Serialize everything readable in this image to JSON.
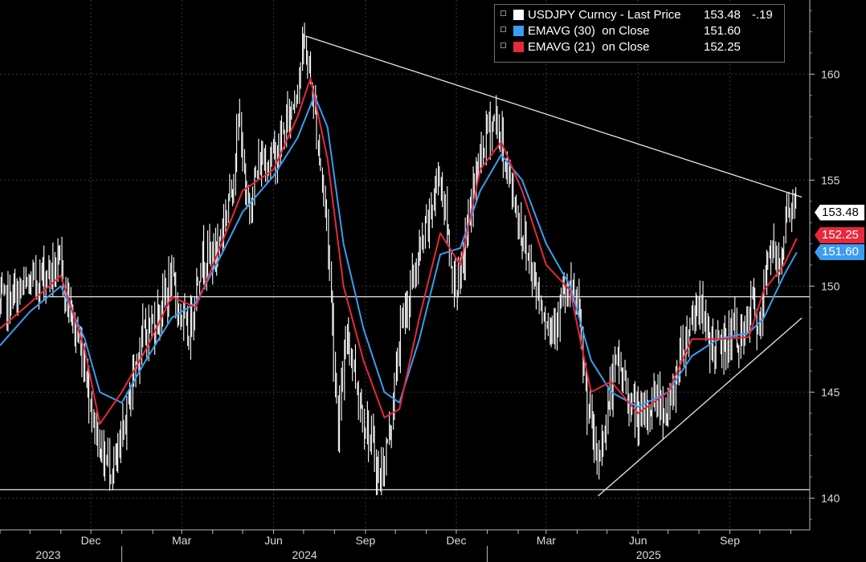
{
  "legend": {
    "items": [
      {
        "label": "USDJPY Curncy - Last Price",
        "value": "153.48",
        "change": "-.19",
        "color": "#ffffff"
      },
      {
        "label": "EMAVG (30)  on Close",
        "value": "151.60",
        "change": "",
        "color": "#3c9cf0"
      },
      {
        "label": "EMAVG (21)  on Close",
        "value": "152.25",
        "change": "",
        "color": "#e8283c"
      }
    ]
  },
  "tags": {
    "last": "153.48",
    "ema21": "152.25",
    "ema30": "151.60"
  },
  "chart_data": {
    "type": "line",
    "title": "",
    "xlabel": "",
    "ylabel": "",
    "y_ticks": [
      "140",
      "145",
      "150",
      "155",
      "160"
    ],
    "ylim": [
      138.5,
      163.5
    ],
    "x_tick_labels": [
      "Dec",
      "Mar",
      "Jun",
      "Sep",
      "Dec",
      "Mar",
      "Jun",
      "Sep"
    ],
    "year_labels": [
      "2023",
      "2024",
      "2025"
    ],
    "x_range": [
      "2023-09",
      "2025-11"
    ],
    "grid": true,
    "legend_position": "top-right",
    "series": [
      {
        "name": "USDJPY Curncy - Last Price",
        "color": "#ffffff",
        "style": "high-low bars",
        "points": [
          [
            "2023-09-01",
            149.0
          ],
          [
            "2023-09-15",
            149.5
          ],
          [
            "2023-10-01",
            150.0
          ],
          [
            "2023-10-15",
            150.6
          ],
          [
            "2023-11-01",
            150.9
          ],
          [
            "2023-11-15",
            148.0
          ],
          [
            "2023-11-25",
            146.5
          ],
          [
            "2023-12-05",
            143.5
          ],
          [
            "2023-12-15",
            141.8
          ],
          [
            "2023-12-28",
            141.5
          ],
          [
            "2024-01-10",
            145.0
          ],
          [
            "2024-01-20",
            147.5
          ],
          [
            "2024-02-05",
            148.5
          ],
          [
            "2024-02-20",
            150.2
          ],
          [
            "2024-03-08",
            147.5
          ],
          [
            "2024-03-20",
            151.3
          ],
          [
            "2024-04-05",
            151.6
          ],
          [
            "2024-04-20",
            154.6
          ],
          [
            "2024-04-29",
            158.0
          ],
          [
            "2024-05-05",
            153.5
          ],
          [
            "2024-05-20",
            156.0
          ],
          [
            "2024-06-05",
            156.2
          ],
          [
            "2024-06-20",
            158.5
          ],
          [
            "2024-07-03",
            161.5
          ],
          [
            "2024-07-12",
            158.5
          ],
          [
            "2024-07-25",
            153.0
          ],
          [
            "2024-08-05",
            143.5
          ],
          [
            "2024-08-15",
            148.0
          ],
          [
            "2024-08-25",
            145.0
          ],
          [
            "2024-09-05",
            143.0
          ],
          [
            "2024-09-16",
            140.8
          ],
          [
            "2024-09-27",
            143.5
          ],
          [
            "2024-10-07",
            148.0
          ],
          [
            "2024-10-20",
            150.5
          ],
          [
            "2024-11-01",
            152.5
          ],
          [
            "2024-11-15",
            155.5
          ],
          [
            "2024-11-28",
            150.5
          ],
          [
            "2024-12-05",
            150.0
          ],
          [
            "2024-12-18",
            154.5
          ],
          [
            "2025-01-01",
            157.3
          ],
          [
            "2025-01-10",
            158.0
          ],
          [
            "2025-01-20",
            155.8
          ],
          [
            "2025-02-05",
            152.5
          ],
          [
            "2025-02-20",
            150.0
          ],
          [
            "2025-03-05",
            148.0
          ],
          [
            "2025-03-20",
            149.5
          ],
          [
            "2025-04-01",
            149.5
          ],
          [
            "2025-04-10",
            145.0
          ],
          [
            "2025-04-22",
            141.5
          ],
          [
            "2025-05-01",
            144.0
          ],
          [
            "2025-05-12",
            146.5
          ],
          [
            "2025-05-25",
            144.5
          ],
          [
            "2025-06-05",
            143.5
          ],
          [
            "2025-06-20",
            145.0
          ],
          [
            "2025-07-01",
            143.8
          ],
          [
            "2025-07-15",
            147.0
          ],
          [
            "2025-08-01",
            149.5
          ],
          [
            "2025-08-10",
            147.5
          ],
          [
            "2025-08-25",
            147.0
          ],
          [
            "2025-09-05",
            148.0
          ],
          [
            "2025-09-15",
            147.3
          ],
          [
            "2025-09-25",
            149.5
          ],
          [
            "2025-10-01",
            147.3
          ],
          [
            "2025-10-10",
            152.0
          ],
          [
            "2025-10-20",
            151.0
          ],
          [
            "2025-10-31",
            154.0
          ],
          [
            "2025-11-07",
            153.48
          ]
        ]
      },
      {
        "name": "EMAVG (30)  on Close",
        "color": "#3c9cf0",
        "points": [
          [
            "2023-09-01",
            147.2
          ],
          [
            "2023-10-01",
            148.8
          ],
          [
            "2023-11-01",
            150.0
          ],
          [
            "2023-11-25",
            147.5
          ],
          [
            "2023-12-10",
            145.0
          ],
          [
            "2024-01-01",
            144.5
          ],
          [
            "2024-01-25",
            146.5
          ],
          [
            "2024-02-20",
            148.5
          ],
          [
            "2024-03-15",
            149.2
          ],
          [
            "2024-04-10",
            151.5
          ],
          [
            "2024-05-01",
            153.5
          ],
          [
            "2024-06-01",
            155.2
          ],
          [
            "2024-06-25",
            157.0
          ],
          [
            "2024-07-12",
            159.0
          ],
          [
            "2024-07-25",
            157.5
          ],
          [
            "2024-08-10",
            152.0
          ],
          [
            "2024-08-30",
            148.0
          ],
          [
            "2024-09-20",
            145.0
          ],
          [
            "2024-10-05",
            144.5
          ],
          [
            "2024-10-25",
            147.5
          ],
          [
            "2024-11-15",
            151.5
          ],
          [
            "2024-12-05",
            151.8
          ],
          [
            "2024-12-25",
            154.5
          ],
          [
            "2025-01-15",
            156.2
          ],
          [
            "2025-02-05",
            155.0
          ],
          [
            "2025-03-01",
            152.0
          ],
          [
            "2025-03-25",
            150.0
          ],
          [
            "2025-04-15",
            146.5
          ],
          [
            "2025-05-05",
            145.0
          ],
          [
            "2025-06-01",
            144.3
          ],
          [
            "2025-07-01",
            145.0
          ],
          [
            "2025-07-25",
            146.7
          ],
          [
            "2025-08-20",
            147.5
          ],
          [
            "2025-09-20",
            147.8
          ],
          [
            "2025-10-05",
            148.5
          ],
          [
            "2025-10-25",
            150.5
          ],
          [
            "2025-11-07",
            151.6
          ]
        ]
      },
      {
        "name": "EMAVG (21)  on Close",
        "color": "#e8283c",
        "points": [
          [
            "2023-09-01",
            148.0
          ],
          [
            "2023-10-01",
            149.2
          ],
          [
            "2023-11-01",
            150.5
          ],
          [
            "2023-11-25",
            147.0
          ],
          [
            "2023-12-10",
            143.5
          ],
          [
            "2024-01-01",
            145.0
          ],
          [
            "2024-01-25",
            147.0
          ],
          [
            "2024-02-20",
            149.5
          ],
          [
            "2024-03-15",
            149.0
          ],
          [
            "2024-04-10",
            152.0
          ],
          [
            "2024-05-01",
            154.5
          ],
          [
            "2024-06-01",
            155.5
          ],
          [
            "2024-06-25",
            158.0
          ],
          [
            "2024-07-08",
            159.8
          ],
          [
            "2024-07-25",
            156.0
          ],
          [
            "2024-08-10",
            150.0
          ],
          [
            "2024-08-30",
            146.5
          ],
          [
            "2024-09-20",
            143.8
          ],
          [
            "2024-10-05",
            144.2
          ],
          [
            "2024-10-25",
            148.5
          ],
          [
            "2024-11-15",
            152.5
          ],
          [
            "2024-12-05",
            151.0
          ],
          [
            "2024-12-25",
            155.5
          ],
          [
            "2025-01-15",
            156.8
          ],
          [
            "2025-02-05",
            154.5
          ],
          [
            "2025-03-01",
            151.0
          ],
          [
            "2025-03-25",
            149.8
          ],
          [
            "2025-04-15",
            145.0
          ],
          [
            "2025-05-05",
            145.5
          ],
          [
            "2025-06-01",
            144.0
          ],
          [
            "2025-07-01",
            145.0
          ],
          [
            "2025-07-25",
            147.5
          ],
          [
            "2025-08-20",
            147.5
          ],
          [
            "2025-09-20",
            147.6
          ],
          [
            "2025-10-05",
            149.8
          ],
          [
            "2025-10-25",
            151.0
          ],
          [
            "2025-11-07",
            152.25
          ]
        ]
      }
    ],
    "annotations": [
      {
        "kind": "trendline",
        "from": [
          "2024-07-03",
          161.8
        ],
        "to": [
          "2025-11-12",
          154.2
        ]
      },
      {
        "kind": "trendline",
        "from": [
          "2025-04-22",
          140.1
        ],
        "to": [
          "2025-11-12",
          148.5
        ]
      },
      {
        "kind": "hline",
        "y": 149.5,
        "from": "2023-10-15"
      },
      {
        "kind": "hline",
        "y": 140.4,
        "from": "2023-09-01"
      }
    ]
  },
  "colors": {
    "background": "#000000",
    "grid": "#3a3a3a",
    "axis_text": "#dcdcdc",
    "tag_red": "#e8283c",
    "tag_blue": "#3c9cf0"
  }
}
